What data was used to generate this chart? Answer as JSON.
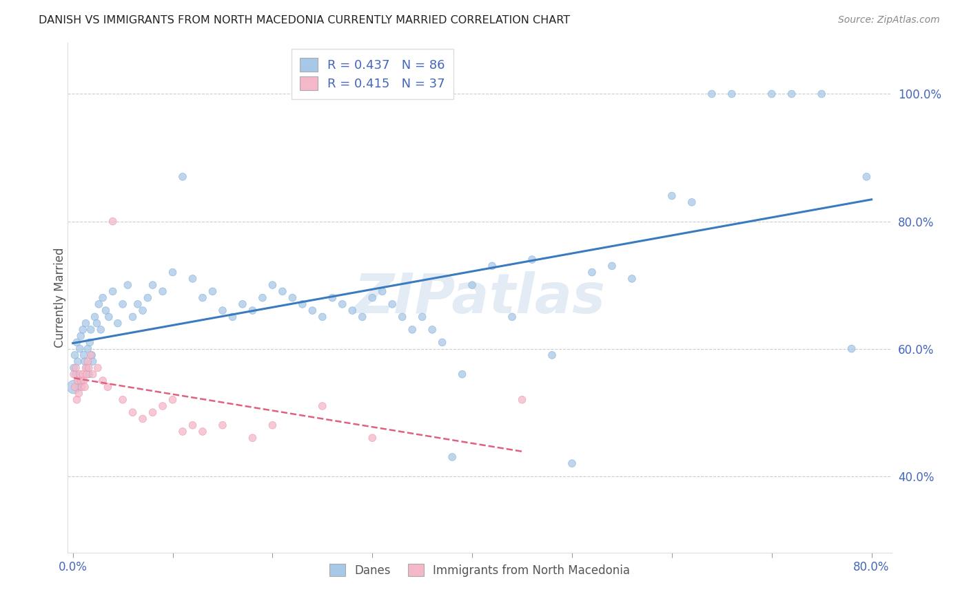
{
  "title": "DANISH VS IMMIGRANTS FROM NORTH MACEDONIA CURRENTLY MARRIED CORRELATION CHART",
  "source_text": "Source: ZipAtlas.com",
  "ylabel": "Currently Married",
  "watermark": "ZIPatlas",
  "xlim": [
    -0.005,
    0.82
  ],
  "ylim": [
    0.28,
    1.08
  ],
  "xticks": [
    0.0,
    0.1,
    0.2,
    0.3,
    0.4,
    0.5,
    0.6,
    0.7,
    0.8
  ],
  "xticklabels": [
    "0.0%",
    "",
    "",
    "",
    "",
    "",
    "",
    "",
    "80.0%"
  ],
  "yticks": [
    0.4,
    0.6,
    0.8,
    1.0
  ],
  "yticklabels": [
    "40.0%",
    "60.0%",
    "80.0%",
    "100.0%"
  ],
  "legend_label1": "Danes",
  "legend_label2": "Immigrants from North Macedonia",
  "blue_color": "#a8c8e8",
  "pink_color": "#f4b8c8",
  "blue_edge_color": "#7aadd4",
  "pink_edge_color": "#e890a8",
  "blue_line_color": "#3a7abf",
  "pink_line_color": "#e06080",
  "danes_x": [
    0.001,
    0.002,
    0.003,
    0.004,
    0.005,
    0.006,
    0.007,
    0.008,
    0.009,
    0.01,
    0.011,
    0.012,
    0.013,
    0.014,
    0.015,
    0.016,
    0.017,
    0.018,
    0.019,
    0.02,
    0.022,
    0.024,
    0.026,
    0.028,
    0.03,
    0.033,
    0.036,
    0.04,
    0.045,
    0.05,
    0.055,
    0.06,
    0.065,
    0.07,
    0.075,
    0.08,
    0.09,
    0.1,
    0.11,
    0.12,
    0.13,
    0.14,
    0.15,
    0.16,
    0.17,
    0.18,
    0.19,
    0.2,
    0.21,
    0.22,
    0.23,
    0.24,
    0.25,
    0.26,
    0.27,
    0.28,
    0.29,
    0.3,
    0.31,
    0.32,
    0.33,
    0.34,
    0.35,
    0.36,
    0.37,
    0.38,
    0.39,
    0.4,
    0.42,
    0.44,
    0.46,
    0.48,
    0.5,
    0.52,
    0.54,
    0.56,
    0.6,
    0.62,
    0.64,
    0.66,
    0.7,
    0.72,
    0.75,
    0.78,
    0.795,
    0.001
  ],
  "danes_y": [
    0.57,
    0.59,
    0.56,
    0.61,
    0.58,
    0.54,
    0.6,
    0.62,
    0.55,
    0.63,
    0.59,
    0.58,
    0.64,
    0.57,
    0.6,
    0.56,
    0.61,
    0.63,
    0.59,
    0.58,
    0.65,
    0.64,
    0.67,
    0.63,
    0.68,
    0.66,
    0.65,
    0.69,
    0.64,
    0.67,
    0.7,
    0.65,
    0.67,
    0.66,
    0.68,
    0.7,
    0.69,
    0.72,
    0.87,
    0.71,
    0.68,
    0.69,
    0.66,
    0.65,
    0.67,
    0.66,
    0.68,
    0.7,
    0.69,
    0.68,
    0.67,
    0.66,
    0.65,
    0.68,
    0.67,
    0.66,
    0.65,
    0.68,
    0.69,
    0.67,
    0.65,
    0.63,
    0.65,
    0.63,
    0.61,
    0.43,
    0.56,
    0.7,
    0.73,
    0.65,
    0.74,
    0.59,
    0.42,
    0.72,
    0.73,
    0.71,
    0.84,
    0.83,
    1.0,
    1.0,
    1.0,
    1.0,
    1.0,
    0.6,
    0.87,
    0.54
  ],
  "danes_size": [
    60,
    60,
    60,
    60,
    60,
    60,
    60,
    60,
    60,
    60,
    60,
    60,
    60,
    60,
    60,
    60,
    60,
    60,
    60,
    60,
    60,
    60,
    60,
    60,
    60,
    60,
    60,
    60,
    60,
    60,
    60,
    60,
    60,
    60,
    60,
    60,
    60,
    60,
    60,
    60,
    60,
    60,
    60,
    60,
    60,
    60,
    60,
    60,
    60,
    60,
    60,
    60,
    60,
    60,
    60,
    60,
    60,
    60,
    60,
    60,
    60,
    60,
    60,
    60,
    60,
    60,
    60,
    60,
    60,
    60,
    60,
    60,
    60,
    60,
    60,
    60,
    60,
    60,
    60,
    60,
    60,
    60,
    60,
    60,
    60,
    200
  ],
  "immig_x": [
    0.001,
    0.002,
    0.003,
    0.004,
    0.005,
    0.006,
    0.007,
    0.008,
    0.009,
    0.01,
    0.011,
    0.012,
    0.013,
    0.014,
    0.015,
    0.016,
    0.018,
    0.02,
    0.025,
    0.03,
    0.035,
    0.04,
    0.05,
    0.06,
    0.07,
    0.08,
    0.09,
    0.1,
    0.11,
    0.12,
    0.13,
    0.15,
    0.18,
    0.2,
    0.25,
    0.3,
    0.45
  ],
  "immig_y": [
    0.56,
    0.54,
    0.57,
    0.52,
    0.55,
    0.53,
    0.56,
    0.55,
    0.54,
    0.56,
    0.55,
    0.54,
    0.57,
    0.56,
    0.58,
    0.57,
    0.59,
    0.56,
    0.57,
    0.55,
    0.54,
    0.8,
    0.52,
    0.5,
    0.49,
    0.5,
    0.51,
    0.52,
    0.47,
    0.48,
    0.47,
    0.48,
    0.46,
    0.48,
    0.51,
    0.46,
    0.52
  ],
  "immig_size": [
    60,
    60,
    60,
    60,
    60,
    60,
    60,
    60,
    60,
    60,
    60,
    60,
    60,
    60,
    60,
    60,
    60,
    60,
    60,
    60,
    60,
    60,
    60,
    60,
    60,
    60,
    60,
    60,
    60,
    60,
    60,
    60,
    60,
    60,
    60,
    60,
    60
  ]
}
